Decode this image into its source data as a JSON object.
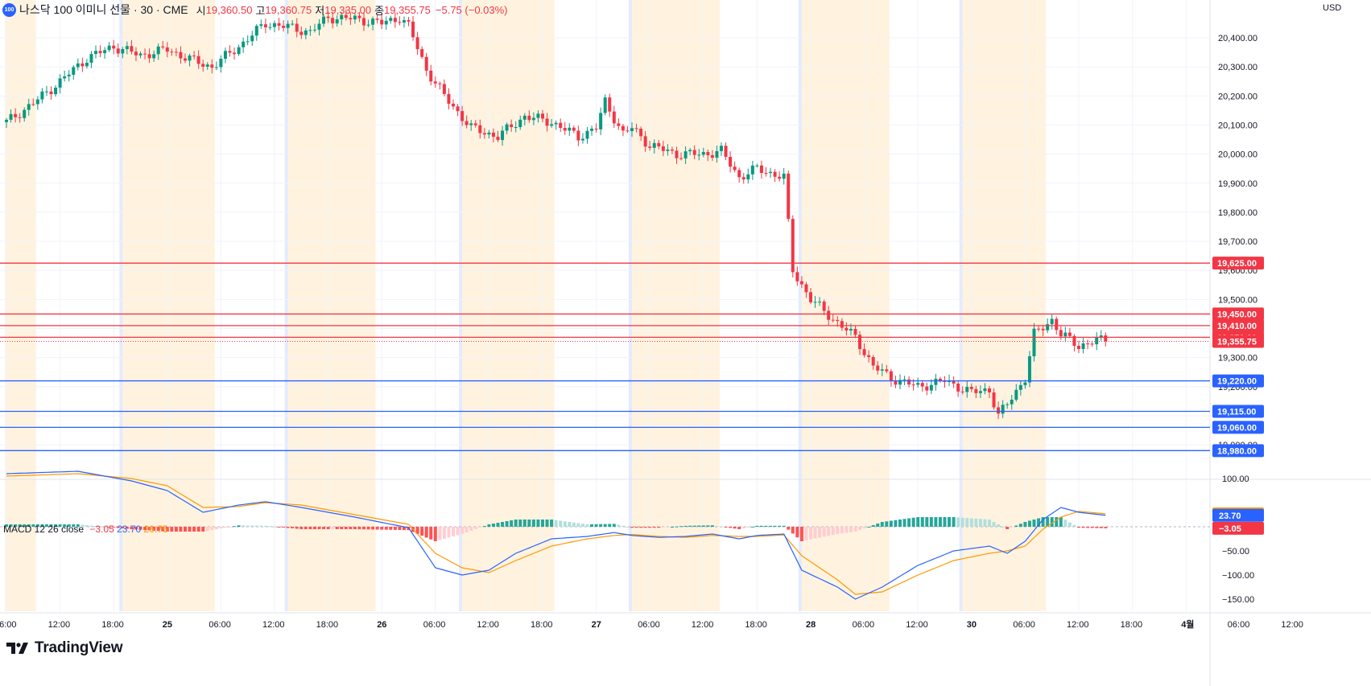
{
  "header": {
    "logo_text": "100",
    "title": "나스닥 100 이미니 선물 · 30 · CME",
    "open_label": "시",
    "open": "19,360.50",
    "high_label": "고",
    "high": "19,360.75",
    "low_label": "저",
    "low": "19,335.00",
    "close_label": "종",
    "close": "19,355.75",
    "change": "−5.75 (−0.03%)"
  },
  "currency": "USD",
  "branding": "TradingView",
  "macd": {
    "name": "MACD 12 26 close",
    "hist": "−3.05",
    "macd": "23.70",
    "signal": "26.75",
    "axis_ticks": [
      "100.00",
      "−50.00",
      "−100.00",
      "−150.00"
    ]
  },
  "price_axis_ticks": [
    "20,400.00",
    "20,300.00",
    "20,200.00",
    "20,100.00",
    "20,000.00",
    "19,900.00",
    "19,800.00",
    "19,700.00",
    "19,600.00",
    "19,500.00",
    "19,300.00",
    "19,200.00",
    "19,000.00"
  ],
  "time_axis_labels": [
    "06:00",
    "12:00",
    "18:00",
    "25",
    "06:00",
    "12:00",
    "18:00",
    "26",
    "06:00",
    "12:00",
    "18:00",
    "27",
    "06:00",
    "12:00",
    "18:00",
    "28",
    "06:00",
    "12:00",
    "30",
    "06:00",
    "12:00",
    "18:00",
    "4월",
    "06:00",
    "12:00"
  ],
  "horizontal_levels": [
    {
      "price": 19625,
      "label": "19,625.00",
      "color": "#f23645"
    },
    {
      "price": 19450,
      "label": "19,450.00",
      "color": "#f23645"
    },
    {
      "price": 19410,
      "label": "19,410.00",
      "color": "#f23645"
    },
    {
      "price": 19370,
      "label": "19,370.00",
      "color": "#f23645"
    },
    {
      "price": 19220,
      "label": "19,220.00",
      "color": "#2962ff"
    },
    {
      "price": 19115,
      "label": "19,115.00",
      "color": "#2962ff"
    },
    {
      "price": 19060,
      "label": "19,060.00",
      "color": "#2962ff"
    },
    {
      "price": 18980,
      "label": "18,980.00",
      "color": "#2962ff"
    }
  ],
  "last_price": {
    "price": 19355.75,
    "label": "19,355.75",
    "color": "#f23645"
  },
  "colors": {
    "up": "#089981",
    "down": "#f23645",
    "macd_line": "#2962ff",
    "signal_line": "#ff9800",
    "session_shade": "#fff3e0",
    "grid": "#f0f3fa"
  },
  "chart_data": {
    "type": "candlestick",
    "symbol": "나스닥 100 이미니 선물",
    "interval": "30",
    "exchange": "CME",
    "y_range": [
      18950,
      20480
    ],
    "price_path": [
      [
        0,
        20110
      ],
      [
        6,
        20175
      ],
      [
        12,
        20250
      ],
      [
        18,
        20330
      ],
      [
        24,
        20370
      ],
      [
        30,
        20340
      ],
      [
        36,
        20360
      ],
      [
        42,
        20320
      ],
      [
        46,
        20300
      ],
      [
        52,
        20370
      ],
      [
        58,
        20450
      ],
      [
        62,
        20440
      ],
      [
        68,
        20420
      ],
      [
        72,
        20470
      ],
      [
        78,
        20465
      ],
      [
        84,
        20450
      ],
      [
        88,
        20470
      ],
      [
        90,
        20440
      ],
      [
        94,
        20290
      ],
      [
        98,
        20200
      ],
      [
        104,
        20090
      ],
      [
        110,
        20060
      ],
      [
        116,
        20130
      ],
      [
        122,
        20110
      ],
      [
        128,
        20060
      ],
      [
        132,
        20090
      ],
      [
        134,
        20180
      ],
      [
        138,
        20070
      ],
      [
        140,
        20090
      ],
      [
        144,
        20030
      ],
      [
        150,
        20000
      ],
      [
        156,
        20000
      ],
      [
        160,
        20010
      ],
      [
        164,
        19920
      ],
      [
        168,
        19950
      ],
      [
        172,
        19930
      ],
      [
        174,
        19920
      ],
      [
        176,
        19600
      ],
      [
        180,
        19500
      ],
      [
        186,
        19420
      ],
      [
        190,
        19370
      ],
      [
        194,
        19270
      ],
      [
        198,
        19230
      ],
      [
        204,
        19200
      ],
      [
        210,
        19220
      ],
      [
        216,
        19180
      ],
      [
        220,
        19190
      ],
      [
        222,
        19100
      ],
      [
        224,
        19140
      ],
      [
        228,
        19230
      ],
      [
        230,
        19380
      ],
      [
        234,
        19430
      ],
      [
        236,
        19380
      ],
      [
        240,
        19340
      ],
      [
        244,
        19360
      ],
      [
        246,
        19355.75
      ]
    ],
    "macd_path": [
      [
        0,
        110
      ],
      [
        16,
        115
      ],
      [
        28,
        95
      ],
      [
        36,
        75
      ],
      [
        44,
        30
      ],
      [
        52,
        45
      ],
      [
        58,
        52
      ],
      [
        66,
        40
      ],
      [
        78,
        20
      ],
      [
        90,
        -2
      ],
      [
        96,
        -85
      ],
      [
        102,
        -100
      ],
      [
        108,
        -90
      ],
      [
        114,
        -55
      ],
      [
        122,
        -25
      ],
      [
        130,
        -20
      ],
      [
        136,
        -12
      ],
      [
        140,
        -18
      ],
      [
        146,
        -22
      ],
      [
        152,
        -20
      ],
      [
        158,
        -15
      ],
      [
        164,
        -25
      ],
      [
        168,
        -18
      ],
      [
        174,
        -15
      ],
      [
        178,
        -90
      ],
      [
        186,
        -125
      ],
      [
        190,
        -150
      ],
      [
        196,
        -125
      ],
      [
        204,
        -80
      ],
      [
        212,
        -50
      ],
      [
        220,
        -40
      ],
      [
        224,
        -55
      ],
      [
        228,
        -30
      ],
      [
        232,
        15
      ],
      [
        236,
        40
      ],
      [
        240,
        30
      ],
      [
        246,
        23.7
      ]
    ],
    "signal_path": [
      [
        0,
        105
      ],
      [
        16,
        110
      ],
      [
        28,
        100
      ],
      [
        36,
        85
      ],
      [
        44,
        40
      ],
      [
        52,
        42
      ],
      [
        58,
        50
      ],
      [
        66,
        45
      ],
      [
        78,
        25
      ],
      [
        90,
        5
      ],
      [
        96,
        -55
      ],
      [
        102,
        -85
      ],
      [
        108,
        -95
      ],
      [
        114,
        -70
      ],
      [
        122,
        -40
      ],
      [
        130,
        -25
      ],
      [
        136,
        -18
      ],
      [
        140,
        -16
      ],
      [
        146,
        -20
      ],
      [
        152,
        -22
      ],
      [
        158,
        -18
      ],
      [
        164,
        -20
      ],
      [
        168,
        -20
      ],
      [
        174,
        -17
      ],
      [
        178,
        -60
      ],
      [
        186,
        -110
      ],
      [
        190,
        -140
      ],
      [
        196,
        -135
      ],
      [
        204,
        -100
      ],
      [
        212,
        -70
      ],
      [
        220,
        -55
      ],
      [
        224,
        -50
      ],
      [
        228,
        -40
      ],
      [
        232,
        -5
      ],
      [
        236,
        20
      ],
      [
        240,
        32
      ],
      [
        246,
        26.75
      ]
    ],
    "macd_y_range": [
      -170,
      130
    ],
    "session_blocks": [
      [
        0,
        7
      ],
      [
        26,
        47
      ],
      [
        63,
        83
      ],
      [
        102,
        123
      ],
      [
        140,
        160
      ],
      [
        178,
        198
      ],
      [
        214,
        233
      ]
    ],
    "day_separators": [
      26,
      63,
      102,
      140,
      178,
      214
    ]
  }
}
